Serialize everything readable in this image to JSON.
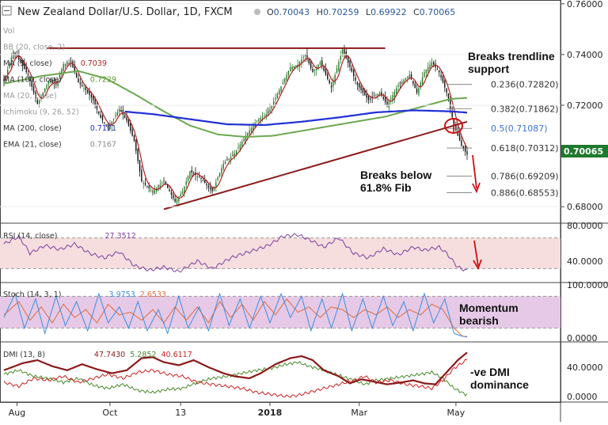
{
  "header": {
    "title": "New Zealand Dollar/U.S. Dollar, 1D, FXCM",
    "ohlc": [
      {
        "k": "O",
        "v": "0.70043"
      },
      {
        "k": "H",
        "v": "0.70259"
      },
      {
        "k": "L",
        "v": "0.69922"
      },
      {
        "k": "C",
        "v": "0.70065"
      }
    ]
  },
  "indicators": [
    {
      "name": "Vol",
      "params": "",
      "value": "",
      "color": "#888888"
    },
    {
      "name": "BB",
      "params": "(20, close, 2)",
      "value": "",
      "color": "#888888"
    },
    {
      "name": "MA",
      "params": "(5, close)",
      "value": "0.7039",
      "color": "#b22222"
    },
    {
      "name": "MA",
      "params": "(100, close)",
      "value": "0.7229",
      "color": "#5a9a2a"
    },
    {
      "name": "MA",
      "params": "(20, close)",
      "value": "",
      "color": "#888888"
    },
    {
      "name": "Ichimoku",
      "params": "(9, 26, 52)",
      "value": "",
      "color": "#888888"
    },
    {
      "name": "MA",
      "params": "(200, close)",
      "value": "0.7171",
      "color": "#1f2fd6"
    },
    {
      "name": "EMA",
      "params": "(21, close)",
      "value": "0.7167",
      "color": "#888888"
    }
  ],
  "current_price": "0.70065",
  "fib_levels": [
    {
      "label": "0.236(0.72820)",
      "value": 0.7282,
      "color": "#333333"
    },
    {
      "label": "0.382(0.71862)",
      "value": 0.71862,
      "color": "#333333"
    },
    {
      "label": "0.5(0.71087)",
      "value": 0.71087,
      "color": "#3b6fd6"
    },
    {
      "label": "0.618(0.70312)",
      "value": 0.70312,
      "color": "#333333"
    },
    {
      "label": "0.786(0.69209)",
      "value": 0.69209,
      "color": "#333333"
    },
    {
      "label": "0.886(0.68553)",
      "value": 0.68553,
      "color": "#333333"
    }
  ],
  "annotations": {
    "trendline_break": "Breaks trendline support",
    "fib_break": "Breaks below 61.8% Fib",
    "momentum": "Momentum bearish",
    "dmi": "-ve DMI dominance"
  },
  "panes": {
    "rsi": {
      "label": "RSI (14, close)",
      "value": "27.3512",
      "ticks": [
        "80.0000",
        "40.0000"
      ]
    },
    "stoch": {
      "label": "Stoch (14, 3, 1)",
      "k": "3.9753",
      "d": "2.6533",
      "ticks": [
        "100.0000",
        "0.0000"
      ]
    },
    "dmi": {
      "label": "DMI (13, 8)",
      "adx": "47.7430",
      "plus": "5.2852",
      "minus": "40.6117",
      "ticks": [
        "40.0000",
        "0.0000"
      ]
    }
  },
  "colors": {
    "bull": "#2a7a2a",
    "bear": "#111111",
    "ma5": "#b22222",
    "ma100": "#6aa84f",
    "ma200": "#1f2fd6",
    "resistance": "#8b1a1a",
    "rsi_line": "#7b3fa0",
    "rsi_band": "#f6dede",
    "stoch_band": "#e6c9e6",
    "stoch_k": "#3a8ee0",
    "stoch_d": "#e06a3a",
    "adx": "#8b1a1a",
    "di_plus": "#4a8a2a",
    "di_minus": "#cc2222",
    "last_price_bg": "#1e7a2e"
  },
  "chart_data": {
    "type": "candlestick",
    "title": "New Zealand Dollar/U.S. Dollar, 1D, FXCM",
    "x_tick_labels": [
      "Aug",
      "Oct",
      "13",
      "2018",
      "Mar",
      "May"
    ],
    "x_tick_positions": [
      7,
      57,
      95,
      143,
      191,
      243
    ],
    "y_tick_labels": [
      "0.76000",
      "0.74000",
      "0.72000",
      "0.68000"
    ],
    "y_tick_values": [
      0.76,
      0.74,
      0.72,
      0.68
    ],
    "ylim": [
      0.6735,
      0.7615
    ],
    "num_bars": 250,
    "price_keypoints": [
      [
        0,
        0.7295
      ],
      [
        5,
        0.7412
      ],
      [
        8,
        0.738
      ],
      [
        13,
        0.7318
      ],
      [
        18,
        0.7205
      ],
      [
        24,
        0.7296
      ],
      [
        28,
        0.7282
      ],
      [
        32,
        0.7362
      ],
      [
        36,
        0.737
      ],
      [
        40,
        0.729
      ],
      [
        44,
        0.726
      ],
      [
        48,
        0.722
      ],
      [
        52,
        0.715
      ],
      [
        56,
        0.711
      ],
      [
        62,
        0.7185
      ],
      [
        66,
        0.714
      ],
      [
        70,
        0.706
      ],
      [
        74,
        0.69
      ],
      [
        80,
        0.686
      ],
      [
        86,
        0.69
      ],
      [
        92,
        0.682
      ],
      [
        96,
        0.686
      ],
      [
        100,
        0.694
      ],
      [
        106,
        0.691
      ],
      [
        112,
        0.686
      ],
      [
        118,
        0.697
      ],
      [
        124,
        0.701
      ],
      [
        130,
        0.708
      ],
      [
        136,
        0.714
      ],
      [
        142,
        0.717
      ],
      [
        148,
        0.726
      ],
      [
        154,
        0.735
      ],
      [
        158,
        0.736
      ],
      [
        162,
        0.74
      ],
      [
        166,
        0.733
      ],
      [
        170,
        0.737
      ],
      [
        176,
        0.727
      ],
      [
        182,
        0.742
      ],
      [
        186,
        0.735
      ],
      [
        190,
        0.728
      ],
      [
        196,
        0.722
      ],
      [
        202,
        0.725
      ],
      [
        206,
        0.72
      ],
      [
        212,
        0.728
      ],
      [
        218,
        0.732
      ],
      [
        222,
        0.725
      ],
      [
        226,
        0.733
      ],
      [
        230,
        0.737
      ],
      [
        234,
        0.733
      ],
      [
        238,
        0.725
      ],
      [
        242,
        0.712
      ],
      [
        246,
        0.704
      ],
      [
        249,
        0.7006
      ]
    ],
    "ma100_keypoints": [
      [
        0,
        0.7285
      ],
      [
        20,
        0.7315
      ],
      [
        40,
        0.7335
      ],
      [
        55,
        0.7305
      ],
      [
        70,
        0.7245
      ],
      [
        85,
        0.718
      ],
      [
        100,
        0.712
      ],
      [
        115,
        0.7085
      ],
      [
        130,
        0.7075
      ],
      [
        145,
        0.708
      ],
      [
        165,
        0.7105
      ],
      [
        185,
        0.713
      ],
      [
        205,
        0.7155
      ],
      [
        225,
        0.7195
      ],
      [
        240,
        0.7225
      ],
      [
        249,
        0.7229
      ]
    ],
    "ma200_keypoints": [
      [
        65,
        0.7175
      ],
      [
        80,
        0.7165
      ],
      [
        100,
        0.7145
      ],
      [
        120,
        0.7125
      ],
      [
        140,
        0.7122
      ],
      [
        160,
        0.7135
      ],
      [
        180,
        0.7152
      ],
      [
        200,
        0.7172
      ],
      [
        220,
        0.718
      ],
      [
        240,
        0.7176
      ],
      [
        249,
        0.7171
      ]
    ],
    "resistance_line": {
      "x": [
        23,
        205
      ],
      "y": [
        0.7425,
        0.7425
      ]
    },
    "trendline": {
      "x": [
        86,
        249
      ],
      "y": [
        0.679,
        0.7135
      ]
    },
    "rsi": {
      "ylim": [
        15,
        85
      ],
      "band": [
        30,
        70
      ],
      "last": 27.3512,
      "keypoints": [
        [
          0,
          62
        ],
        [
          8,
          72
        ],
        [
          14,
          50
        ],
        [
          22,
          60
        ],
        [
          30,
          55
        ],
        [
          38,
          62
        ],
        [
          46,
          50
        ],
        [
          54,
          44
        ],
        [
          62,
          52
        ],
        [
          70,
          34
        ],
        [
          78,
          28
        ],
        [
          86,
          32
        ],
        [
          94,
          26
        ],
        [
          104,
          40
        ],
        [
          112,
          30
        ],
        [
          122,
          44
        ],
        [
          132,
          52
        ],
        [
          142,
          60
        ],
        [
          150,
          72
        ],
        [
          158,
          74
        ],
        [
          164,
          68
        ],
        [
          172,
          58
        ],
        [
          180,
          70
        ],
        [
          188,
          50
        ],
        [
          196,
          44
        ],
        [
          204,
          56
        ],
        [
          212,
          48
        ],
        [
          220,
          58
        ],
        [
          226,
          54
        ],
        [
          234,
          58
        ],
        [
          238,
          50
        ],
        [
          244,
          32
        ],
        [
          249,
          27
        ]
      ]
    },
    "stochastic": {
      "ylim": [
        0,
        100
      ],
      "band": [
        20,
        80
      ],
      "k_last": 3.9753,
      "d_last": 2.6533,
      "k_keypoints": [
        [
          0,
          40
        ],
        [
          6,
          85
        ],
        [
          11,
          20
        ],
        [
          17,
          75
        ],
        [
          22,
          10
        ],
        [
          28,
          80
        ],
        [
          33,
          25
        ],
        [
          39,
          70
        ],
        [
          45,
          15
        ],
        [
          51,
          85
        ],
        [
          56,
          30
        ],
        [
          62,
          60
        ],
        [
          67,
          20
        ],
        [
          72,
          70
        ],
        [
          77,
          15
        ],
        [
          83,
          55
        ],
        [
          88,
          10
        ],
        [
          94,
          80
        ],
        [
          99,
          20
        ],
        [
          105,
          60
        ],
        [
          110,
          15
        ],
        [
          116,
          85
        ],
        [
          121,
          25
        ],
        [
          127,
          75
        ],
        [
          132,
          20
        ],
        [
          138,
          80
        ],
        [
          143,
          30
        ],
        [
          149,
          85
        ],
        [
          154,
          40
        ],
        [
          160,
          80
        ],
        [
          165,
          15
        ],
        [
          171,
          75
        ],
        [
          176,
          20
        ],
        [
          182,
          85
        ],
        [
          187,
          15
        ],
        [
          193,
          75
        ],
        [
          198,
          20
        ],
        [
          204,
          80
        ],
        [
          209,
          25
        ],
        [
          215,
          70
        ],
        [
          220,
          15
        ],
        [
          226,
          85
        ],
        [
          231,
          30
        ],
        [
          237,
          75
        ],
        [
          242,
          10
        ],
        [
          246,
          5
        ],
        [
          249,
          4
        ]
      ],
      "d_keypoints": [
        [
          0,
          45
        ],
        [
          8,
          70
        ],
        [
          14,
          35
        ],
        [
          20,
          60
        ],
        [
          26,
          30
        ],
        [
          32,
          65
        ],
        [
          38,
          40
        ],
        [
          44,
          55
        ],
        [
          50,
          30
        ],
        [
          56,
          65
        ],
        [
          62,
          45
        ],
        [
          68,
          50
        ],
        [
          74,
          35
        ],
        [
          80,
          55
        ],
        [
          86,
          30
        ],
        [
          92,
          60
        ],
        [
          98,
          35
        ],
        [
          104,
          60
        ],
        [
          110,
          30
        ],
        [
          116,
          70
        ],
        [
          122,
          40
        ],
        [
          128,
          65
        ],
        [
          134,
          35
        ],
        [
          140,
          70
        ],
        [
          146,
          45
        ],
        [
          152,
          75
        ],
        [
          158,
          50
        ],
        [
          164,
          60
        ],
        [
          170,
          40
        ],
        [
          176,
          60
        ],
        [
          182,
          55
        ],
        [
          188,
          40
        ],
        [
          194,
          55
        ],
        [
          200,
          45
        ],
        [
          206,
          60
        ],
        [
          212,
          40
        ],
        [
          218,
          55
        ],
        [
          224,
          45
        ],
        [
          230,
          65
        ],
        [
          236,
          55
        ],
        [
          242,
          20
        ],
        [
          246,
          6
        ],
        [
          249,
          2.7
        ]
      ]
    },
    "dmi": {
      "ylim": [
        0,
        55
      ],
      "adx_last": 47.743,
      "plus_last": 5.2852,
      "minus_last": 40.6117,
      "adx_keypoints": [
        [
          0,
          30
        ],
        [
          10,
          37
        ],
        [
          18,
          40
        ],
        [
          26,
          34
        ],
        [
          34,
          30
        ],
        [
          42,
          36
        ],
        [
          50,
          31
        ],
        [
          58,
          27
        ],
        [
          66,
          30
        ],
        [
          74,
          42
        ],
        [
          80,
          43
        ],
        [
          86,
          38
        ],
        [
          94,
          35
        ],
        [
          102,
          40
        ],
        [
          110,
          33
        ],
        [
          118,
          27
        ],
        [
          124,
          24
        ],
        [
          132,
          22
        ],
        [
          138,
          27
        ],
        [
          146,
          36
        ],
        [
          154,
          42
        ],
        [
          160,
          44
        ],
        [
          166,
          40
        ],
        [
          172,
          30
        ],
        [
          180,
          24
        ],
        [
          186,
          17
        ],
        [
          192,
          21
        ],
        [
          198,
          19
        ],
        [
          206,
          16
        ],
        [
          214,
          18
        ],
        [
          220,
          20
        ],
        [
          226,
          17
        ],
        [
          232,
          16
        ],
        [
          238,
          28
        ],
        [
          244,
          40
        ],
        [
          249,
          47.7
        ]
      ],
      "plus_keypoints": [
        [
          0,
          26
        ],
        [
          8,
          30
        ],
        [
          16,
          24
        ],
        [
          24,
          22
        ],
        [
          32,
          18
        ],
        [
          40,
          22
        ],
        [
          48,
          15
        ],
        [
          56,
          12
        ],
        [
          64,
          16
        ],
        [
          72,
          10
        ],
        [
          80,
          8
        ],
        [
          88,
          11
        ],
        [
          96,
          12
        ],
        [
          104,
          18
        ],
        [
          112,
          22
        ],
        [
          120,
          24
        ],
        [
          128,
          27
        ],
        [
          136,
          30
        ],
        [
          144,
          32
        ],
        [
          152,
          36
        ],
        [
          158,
          38
        ],
        [
          164,
          34
        ],
        [
          172,
          30
        ],
        [
          180,
          25
        ],
        [
          188,
          20
        ],
        [
          194,
          16
        ],
        [
          200,
          20
        ],
        [
          208,
          22
        ],
        [
          216,
          24
        ],
        [
          224,
          26
        ],
        [
          230,
          28
        ],
        [
          236,
          22
        ],
        [
          242,
          12
        ],
        [
          249,
          5.3
        ]
      ],
      "minus_keypoints": [
        [
          0,
          18
        ],
        [
          8,
          14
        ],
        [
          16,
          22
        ],
        [
          24,
          20
        ],
        [
          32,
          24
        ],
        [
          40,
          18
        ],
        [
          48,
          22
        ],
        [
          56,
          26
        ],
        [
          64,
          22
        ],
        [
          72,
          28
        ],
        [
          80,
          30
        ],
        [
          88,
          26
        ],
        [
          96,
          24
        ],
        [
          104,
          18
        ],
        [
          112,
          16
        ],
        [
          120,
          14
        ],
        [
          128,
          12
        ],
        [
          136,
          8
        ],
        [
          144,
          6
        ],
        [
          152,
          4
        ],
        [
          158,
          5
        ],
        [
          164,
          8
        ],
        [
          172,
          12
        ],
        [
          180,
          16
        ],
        [
          188,
          20
        ],
        [
          194,
          24
        ],
        [
          200,
          18
        ],
        [
          208,
          20
        ],
        [
          216,
          16
        ],
        [
          224,
          14
        ],
        [
          230,
          12
        ],
        [
          236,
          20
        ],
        [
          242,
          32
        ],
        [
          249,
          40.6
        ]
      ]
    }
  }
}
